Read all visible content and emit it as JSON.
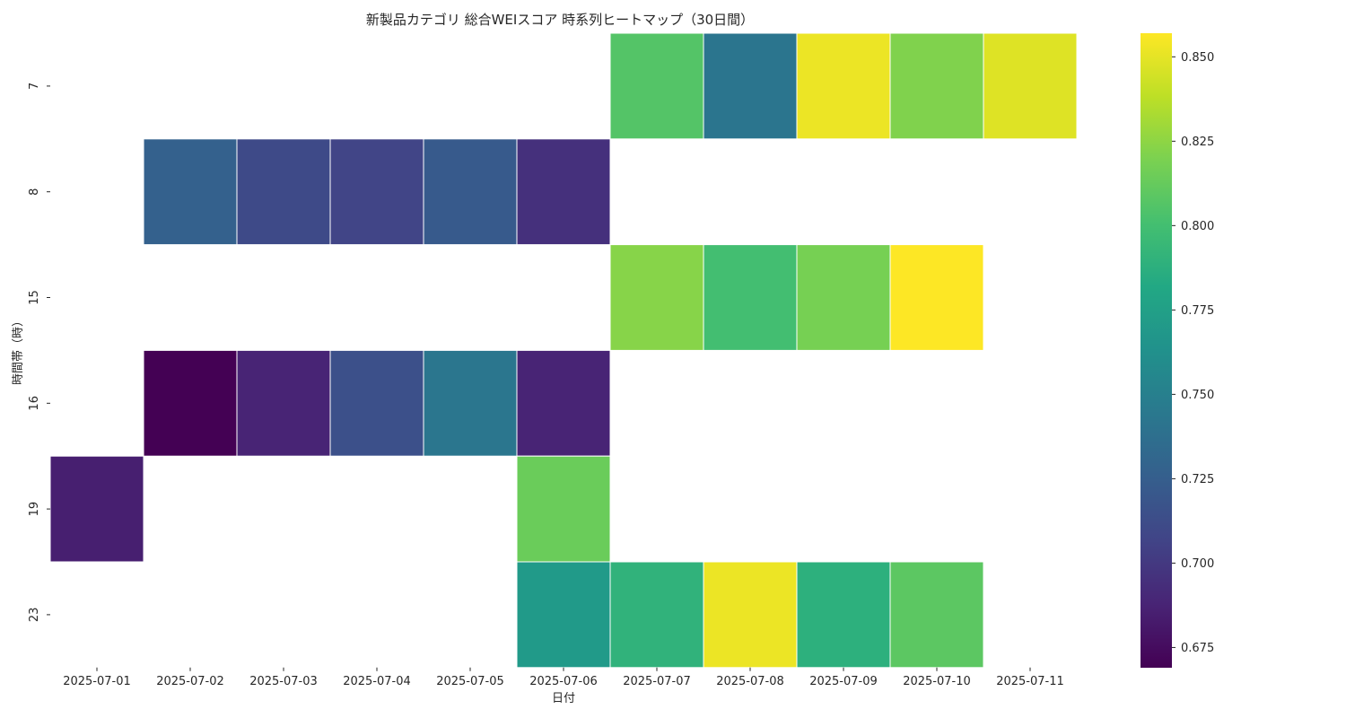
{
  "chart_data": {
    "type": "heatmap",
    "title": "新製品カテゴリ 総合WEIスコア 時系列ヒートマップ（30日間）",
    "xlabel": "日付",
    "ylabel": "時間帯（時）",
    "x": [
      "2025-07-01",
      "2025-07-02",
      "2025-07-03",
      "2025-07-04",
      "2025-07-05",
      "2025-07-06",
      "2025-07-07",
      "2025-07-08",
      "2025-07-09",
      "2025-07-10",
      "2025-07-11"
    ],
    "y": [
      "7",
      "8",
      "15",
      "16",
      "19",
      "23"
    ],
    "values": [
      [
        null,
        null,
        null,
        null,
        null,
        null,
        0.806,
        0.742,
        0.852,
        0.821,
        0.848
      ],
      [
        null,
        0.727,
        0.711,
        0.707,
        0.722,
        0.695,
        null,
        null,
        null,
        null,
        null
      ],
      [
        null,
        null,
        null,
        null,
        null,
        null,
        0.823,
        0.8,
        0.818,
        0.857,
        null
      ],
      [
        null,
        0.669,
        0.688,
        0.715,
        0.743,
        0.688,
        null,
        null,
        null,
        null,
        null
      ],
      [
        0.685,
        null,
        null,
        null,
        null,
        0.814,
        null,
        null,
        null,
        null,
        null
      ],
      [
        null,
        null,
        null,
        null,
        null,
        0.77,
        0.79,
        0.852,
        0.788,
        0.809,
        null
      ]
    ],
    "colormap": "viridis",
    "colorbar": {
      "range": [
        0.669,
        0.857
      ],
      "ticks": [
        "0.675",
        "0.700",
        "0.725",
        "0.750",
        "0.775",
        "0.800",
        "0.825",
        "0.850"
      ]
    },
    "grid": false
  }
}
